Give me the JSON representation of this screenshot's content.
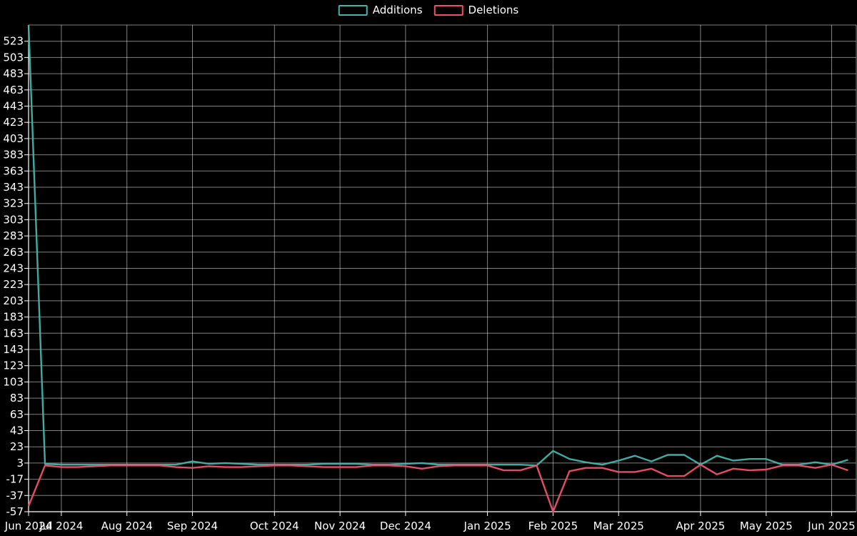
{
  "legend": {
    "items": [
      {
        "label": "Additions",
        "color": "#46b4aa"
      },
      {
        "label": "Deletions",
        "color": "#f0506e"
      }
    ]
  },
  "chart_data": {
    "type": "line",
    "title": "",
    "background": "#000000",
    "grid": true,
    "legend_position": "top-center",
    "x_axis": {
      "unit": "week",
      "week_count": 51,
      "month_ticks": [
        {
          "label": "Jun 2024",
          "week": 0
        },
        {
          "label": "Jul 2024",
          "week": 2
        },
        {
          "label": "Aug 2024",
          "week": 6
        },
        {
          "label": "Sep 2024",
          "week": 10
        },
        {
          "label": "Oct 2024",
          "week": 15
        },
        {
          "label": "Nov 2024",
          "week": 19
        },
        {
          "label": "Dec 2024",
          "week": 23
        },
        {
          "label": "Jan 2025",
          "week": 28
        },
        {
          "label": "Feb 2025",
          "week": 32
        },
        {
          "label": "Mar 2025",
          "week": 36
        },
        {
          "label": "Apr 2025",
          "week": 41
        },
        {
          "label": "May 2025",
          "week": 45
        },
        {
          "label": "Jun 2025",
          "week": 49
        }
      ]
    },
    "y_axis": {
      "tick_values": [
        -57,
        -37,
        -17,
        3,
        23,
        43,
        63,
        83,
        103,
        123,
        143,
        163,
        183,
        203,
        223,
        243,
        263,
        283,
        303,
        323,
        343,
        363,
        383,
        403,
        423,
        443,
        463,
        483,
        503,
        523
      ],
      "visible_min": -57,
      "visible_max": 543
    },
    "series": [
      {
        "name": "Additions",
        "color": "#46b4aa",
        "values": [
          560,
          2,
          1,
          1,
          1,
          1,
          1,
          1,
          1,
          1,
          5,
          2,
          3,
          2,
          1,
          1,
          1,
          1,
          2,
          2,
          2,
          1,
          1,
          2,
          3,
          1,
          1,
          1,
          1,
          1,
          1,
          0,
          18,
          8,
          4,
          1,
          6,
          12,
          5,
          13,
          13,
          1,
          12,
          6,
          8,
          8,
          1,
          1,
          4,
          1,
          7
        ]
      },
      {
        "name": "Deletions",
        "color": "#f0506e",
        "values": [
          -50,
          0,
          -2,
          -2,
          -1,
          0,
          0,
          0,
          0,
          -2,
          -3,
          -1,
          -2,
          -2,
          -1,
          0,
          0,
          -1,
          -2,
          -2,
          -2,
          0,
          0,
          -1,
          -4,
          -1,
          0,
          0,
          0,
          -6,
          -6,
          0,
          -57,
          -7,
          -3,
          -3,
          -8,
          -8,
          -4,
          -13,
          -13,
          1,
          -11,
          -4,
          -6,
          -5,
          0,
          0,
          -3,
          1,
          -6
        ]
      }
    ]
  }
}
